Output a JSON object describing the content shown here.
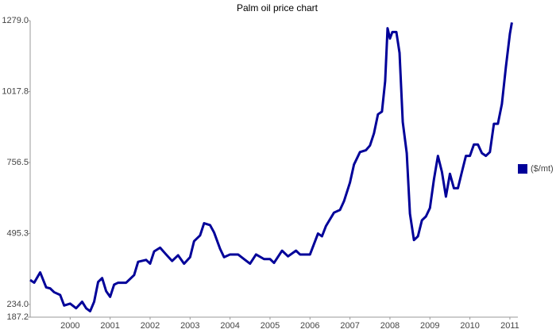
{
  "chart_data": {
    "type": "line",
    "title": "Palm oil  price chart",
    "x": [
      1999.0,
      1999.1,
      1999.25,
      1999.4,
      1999.5,
      1999.6,
      1999.75,
      1999.85,
      2000.0,
      2000.15,
      2000.3,
      2000.4,
      2000.5,
      2000.6,
      2000.7,
      2000.8,
      2000.9,
      2001.0,
      2001.1,
      2001.2,
      2001.4,
      2001.6,
      2001.7,
      2001.9,
      2002.0,
      2002.1,
      2002.25,
      2002.4,
      2002.55,
      2002.7,
      2002.85,
      2003.0,
      2003.1,
      2003.25,
      2003.35,
      2003.5,
      2003.6,
      2003.75,
      2003.85,
      2004.0,
      2004.2,
      2004.35,
      2004.5,
      2004.65,
      2004.85,
      2005.0,
      2005.1,
      2005.3,
      2005.45,
      2005.65,
      2005.75,
      2006.0,
      2006.2,
      2006.3,
      2006.4,
      2006.6,
      2006.75,
      2006.85,
      2007.0,
      2007.1,
      2007.25,
      2007.4,
      2007.5,
      2007.6,
      2007.7,
      2007.8,
      2007.88,
      2007.94,
      2008.0,
      2008.06,
      2008.16,
      2008.24,
      2008.32,
      2008.42,
      2008.5,
      2008.6,
      2008.7,
      2008.8,
      2008.9,
      2009.0,
      2009.1,
      2009.2,
      2009.3,
      2009.4,
      2009.5,
      2009.6,
      2009.7,
      2009.8,
      2009.9,
      2010.0,
      2010.1,
      2010.2,
      2010.3,
      2010.4,
      2010.5,
      2010.6,
      2010.7,
      2010.8,
      2010.9,
      2011.0,
      2011.05
    ],
    "series": [
      {
        "name": "($/mt)",
        "color": "#000099",
        "values": [
          324,
          314,
          352,
          297,
          293,
          279,
          269,
          230,
          237,
          220,
          244,
          220,
          209,
          244,
          317,
          331,
          283,
          262,
          307,
          314,
          314,
          342,
          391,
          398,
          384,
          429,
          443,
          418,
          394,
          415,
          384,
          408,
          467,
          488,
          533,
          526,
          499,
          439,
          408,
          418,
          418,
          401,
          384,
          418,
          401,
          401,
          387,
          432,
          411,
          432,
          418,
          418,
          495,
          485,
          523,
          572,
          582,
          614,
          683,
          749,
          795,
          802,
          819,
          864,
          934,
          944,
          1056,
          1251,
          1213,
          1237,
          1237,
          1160,
          906,
          791,
          568,
          471,
          485,
          544,
          558,
          589,
          694,
          781,
          722,
          631,
          715,
          662,
          662,
          722,
          781,
          781,
          823,
          823,
          791,
          781,
          795,
          899,
          899,
          972,
          1108,
          1230,
          1272
        ]
      }
    ],
    "xlim": [
      1999,
      2011.2
    ],
    "xticks": [
      2000,
      2001,
      2002,
      2003,
      2004,
      2005,
      2006,
      2007,
      2008,
      2009,
      2010,
      2011
    ],
    "ylim": [
      187.2,
      1279.0
    ],
    "yticks": [
      187.2,
      {
        "value": 234.0,
        "label": "234.0"
      },
      495.3,
      756.5,
      1017.8,
      {
        "value": 1279.0,
        "label": "1279.0"
      }
    ],
    "legend": "right"
  }
}
